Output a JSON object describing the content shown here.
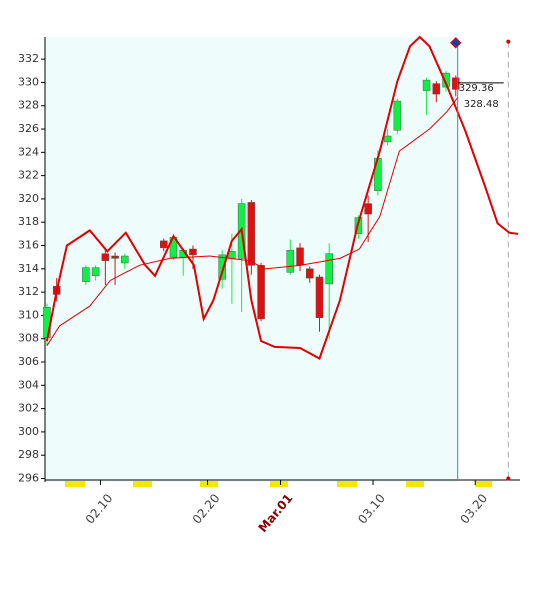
{
  "chart_data": {
    "type": "candlestick",
    "xlim": [
      -0.2,
      48.6
    ],
    "ylim": [
      295.7,
      333.9
    ],
    "yticks": [
      296,
      298,
      300,
      302,
      304,
      306,
      308,
      310,
      312,
      314,
      316,
      318,
      320,
      322,
      324,
      326,
      328,
      330,
      332
    ],
    "xticks": [
      {
        "value": 5.5,
        "label": "02.10"
      },
      {
        "value": 16.5,
        "label": "02.20"
      },
      {
        "value": 24,
        "label": "Mar.01"
      },
      {
        "value": 33.5,
        "label": "03.10"
      },
      {
        "value": 44,
        "label": "03.20"
      }
    ],
    "xtick_colors": [
      "#444444",
      "#444444",
      "#8b0000",
      "#444444",
      "#444444"
    ],
    "up_color": "#11ee44",
    "down_color": "#dd1111",
    "background_color": "#effcfc",
    "candles": {
      "x": [
        0,
        1,
        4,
        5,
        6,
        7,
        8,
        12,
        13,
        14,
        15,
        18,
        19,
        20,
        21,
        22,
        25,
        26,
        27,
        28,
        29,
        32,
        33,
        34,
        35,
        36,
        39,
        40,
        41,
        42
      ],
      "open": [
        308.1,
        312.5,
        312.9,
        313.4,
        315.3,
        315.1,
        314.5,
        316.4,
        315.0,
        315.0,
        315.7,
        313.1,
        314.9,
        314.9,
        319.7,
        314.3,
        313.7,
        315.8,
        314.0,
        313.3,
        312.7,
        317.0,
        319.6,
        320.7,
        324.9,
        325.9,
        329.3,
        329.9,
        329.6,
        330.4
      ],
      "high": [
        311.0,
        313.2,
        314.3,
        314.3,
        315.8,
        315.4,
        315.3,
        316.6,
        317.0,
        315.8,
        316.0,
        315.6,
        317.0,
        320.0,
        319.9,
        314.5,
        316.5,
        316.2,
        314.2,
        313.5,
        316.2,
        318.6,
        320.3,
        324.2,
        326.0,
        328.6,
        330.4,
        330.1,
        331.0,
        330.6
      ],
      "low": [
        307.4,
        311.2,
        312.6,
        313.0,
        312.6,
        312.6,
        314.0,
        315.5,
        314.8,
        313.4,
        314.0,
        312.3,
        311.0,
        310.3,
        313.5,
        309.5,
        313.5,
        313.8,
        312.8,
        308.6,
        308.0,
        316.6,
        316.3,
        320.3,
        324.6,
        325.6,
        327.2,
        328.3,
        329.2,
        328.8
      ],
      "close": [
        310.7,
        311.8,
        314.1,
        314.1,
        314.7,
        314.9,
        315.1,
        315.8,
        316.7,
        315.6,
        315.2,
        315.2,
        315.5,
        319.6,
        314.3,
        309.7,
        315.6,
        314.3,
        313.2,
        309.8,
        315.3,
        318.4,
        318.7,
        323.5,
        325.4,
        328.4,
        330.2,
        329.0,
        330.8,
        329.4
      ]
    },
    "series": [
      {
        "color": "#e00000",
        "width": 2,
        "x": [
          0,
          1,
          2.05,
          4.4,
          6.2,
          8.1,
          10.1,
          11.1,
          13,
          15.1,
          16.1,
          17.1,
          19,
          20,
          21,
          22,
          23.4,
          26,
          28,
          30.1,
          31.9,
          34.2,
          36,
          37.3,
          38.3,
          39.3,
          41.1,
          43,
          45,
          46.3,
          47.5,
          48.4
        ],
        "values": [
          307.8,
          312.1,
          316.0,
          317.3,
          315.5,
          317.1,
          314.3,
          313.4,
          316.8,
          314.3,
          309.7,
          311.3,
          316.4,
          317.4,
          311.3,
          307.8,
          307.3,
          307.2,
          306.3,
          311.3,
          317.7,
          324.1,
          330.1,
          333.1,
          333.9,
          333.1,
          329.7,
          325.8,
          321.1,
          317.9,
          317.1,
          317.0
        ]
      },
      {
        "color": "#e00000",
        "width": 1,
        "x": [
          0,
          1.3,
          4.4,
          6.5,
          9.5,
          12.6,
          16.7,
          20.8,
          22.4,
          26,
          30.1,
          32.1,
          34.2,
          36.2,
          39.3,
          41.1,
          42.2
        ],
        "values": [
          307.4,
          309.1,
          310.8,
          313.0,
          314.3,
          314.9,
          315.1,
          314.7,
          314.0,
          314.3,
          314.9,
          315.7,
          318.5,
          324.1,
          326.0,
          327.5,
          328.7
        ]
      }
    ],
    "cursor_x": 42.2,
    "price_labels": [
      329.36,
      328.48
    ],
    "markers": [
      {
        "x": 42,
        "y": 333.4,
        "color": "#1f3fa0",
        "shape": "diamond"
      },
      {
        "x": 47.4,
        "y": 333.5,
        "color": "#e00000",
        "shape": "dot"
      },
      {
        "x": 47.4,
        "y": 296,
        "color": "#e00000",
        "shape": "dot"
      }
    ]
  }
}
